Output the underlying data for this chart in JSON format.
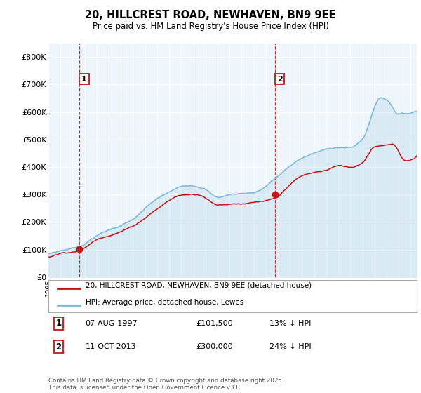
{
  "title": "20, HILLCREST ROAD, NEWHAVEN, BN9 9EE",
  "subtitle": "Price paid vs. HM Land Registry's House Price Index (HPI)",
  "ylim": [
    0,
    850000
  ],
  "yticks": [
    0,
    100000,
    200000,
    300000,
    400000,
    500000,
    600000,
    700000,
    800000
  ],
  "ytick_labels": [
    "£0",
    "£100K",
    "£200K",
    "£300K",
    "£400K",
    "£500K",
    "£600K",
    "£700K",
    "£800K"
  ],
  "xmin": 1995,
  "xmax": 2025.5,
  "sale1_year": 1997.58,
  "sale1_price": 101500,
  "sale2_year": 2013.78,
  "sale2_price": 300000,
  "hpi_color": "#7ab8d9",
  "price_color": "#cc1111",
  "hpi_bg_color": "#ddeef7",
  "chart_bg": "#eef5fb",
  "legend_line1": "20, HILLCREST ROAD, NEWHAVEN, BN9 9EE (detached house)",
  "legend_line2": "HPI: Average price, detached house, Lewes",
  "table_row1": [
    "1",
    "07-AUG-1997",
    "£101,500",
    "13% ↓ HPI"
  ],
  "table_row2": [
    "2",
    "11-OCT-2013",
    "£300,000",
    "24% ↓ HPI"
  ],
  "footer": "Contains HM Land Registry data © Crown copyright and database right 2025.\nThis data is licensed under the Open Government Licence v3.0."
}
